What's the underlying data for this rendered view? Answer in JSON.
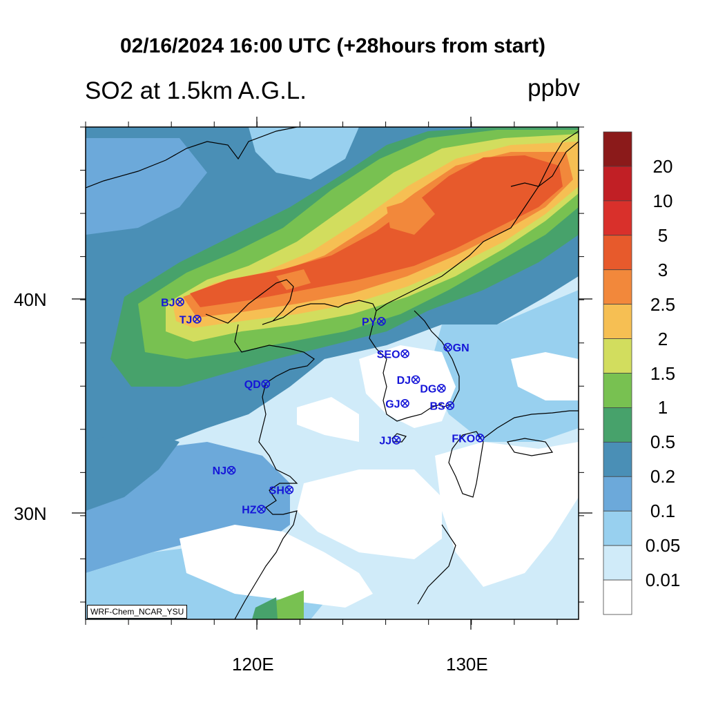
{
  "title": "02/16/2024 16:00 UTC (+28hours from start)",
  "variable": "SO2 at 1.5km A.G.L.",
  "unit": "ppbv",
  "credit": "WRF-Chem_NCAR_YSU",
  "map": {
    "lon_range": [
      112,
      135
    ],
    "lat_range": [
      25.2,
      48
    ],
    "lat_ticks": [
      {
        "value": 40,
        "label": "40N"
      },
      {
        "value": 30,
        "label": "30N"
      }
    ],
    "lon_ticks": [
      {
        "value": 120,
        "label": "120E"
      },
      {
        "value": 130,
        "label": "130E"
      }
    ]
  },
  "colorbar": {
    "labels": [
      "20",
      "10",
      "5",
      "3",
      "2.5",
      "2",
      "1.5",
      "1",
      "0.5",
      "0.2",
      "0.1",
      "0.05",
      "0.01"
    ],
    "colors": [
      "#8b1a1a",
      "#c11f25",
      "#d9302b",
      "#e75a2c",
      "#f2883b",
      "#f6bf53",
      "#d2dd5e",
      "#78c151",
      "#47a26b",
      "#4a8fb6",
      "#6ca9da",
      "#98d0ef",
      "#d0ebf9",
      "#ffffff"
    ]
  },
  "stations": [
    {
      "code": "BJ",
      "lon": 116.4,
      "lat": 39.9
    },
    {
      "code": "TJ",
      "lon": 117.2,
      "lat": 39.1
    },
    {
      "code": "PY",
      "lon": 125.8,
      "lat": 39.0
    },
    {
      "code": "SEO",
      "lon": 126.9,
      "lat": 37.5
    },
    {
      "code": "GN",
      "lon": 128.9,
      "lat": 37.8
    },
    {
      "code": "QD",
      "lon": 120.4,
      "lat": 36.1
    },
    {
      "code": "DJ",
      "lon": 127.4,
      "lat": 36.3
    },
    {
      "code": "DG",
      "lon": 128.6,
      "lat": 35.9
    },
    {
      "code": "GJ",
      "lon": 126.9,
      "lat": 35.2
    },
    {
      "code": "BS",
      "lon": 129.0,
      "lat": 35.1
    },
    {
      "code": "JJ",
      "lon": 126.5,
      "lat": 33.5
    },
    {
      "code": "FKO",
      "lon": 130.4,
      "lat": 33.6
    },
    {
      "code": "NJ",
      "lon": 118.8,
      "lat": 32.1
    },
    {
      "code": "SH",
      "lon": 121.5,
      "lat": 31.2
    },
    {
      "code": "HZ",
      "lon": 120.2,
      "lat": 30.3
    }
  ]
}
